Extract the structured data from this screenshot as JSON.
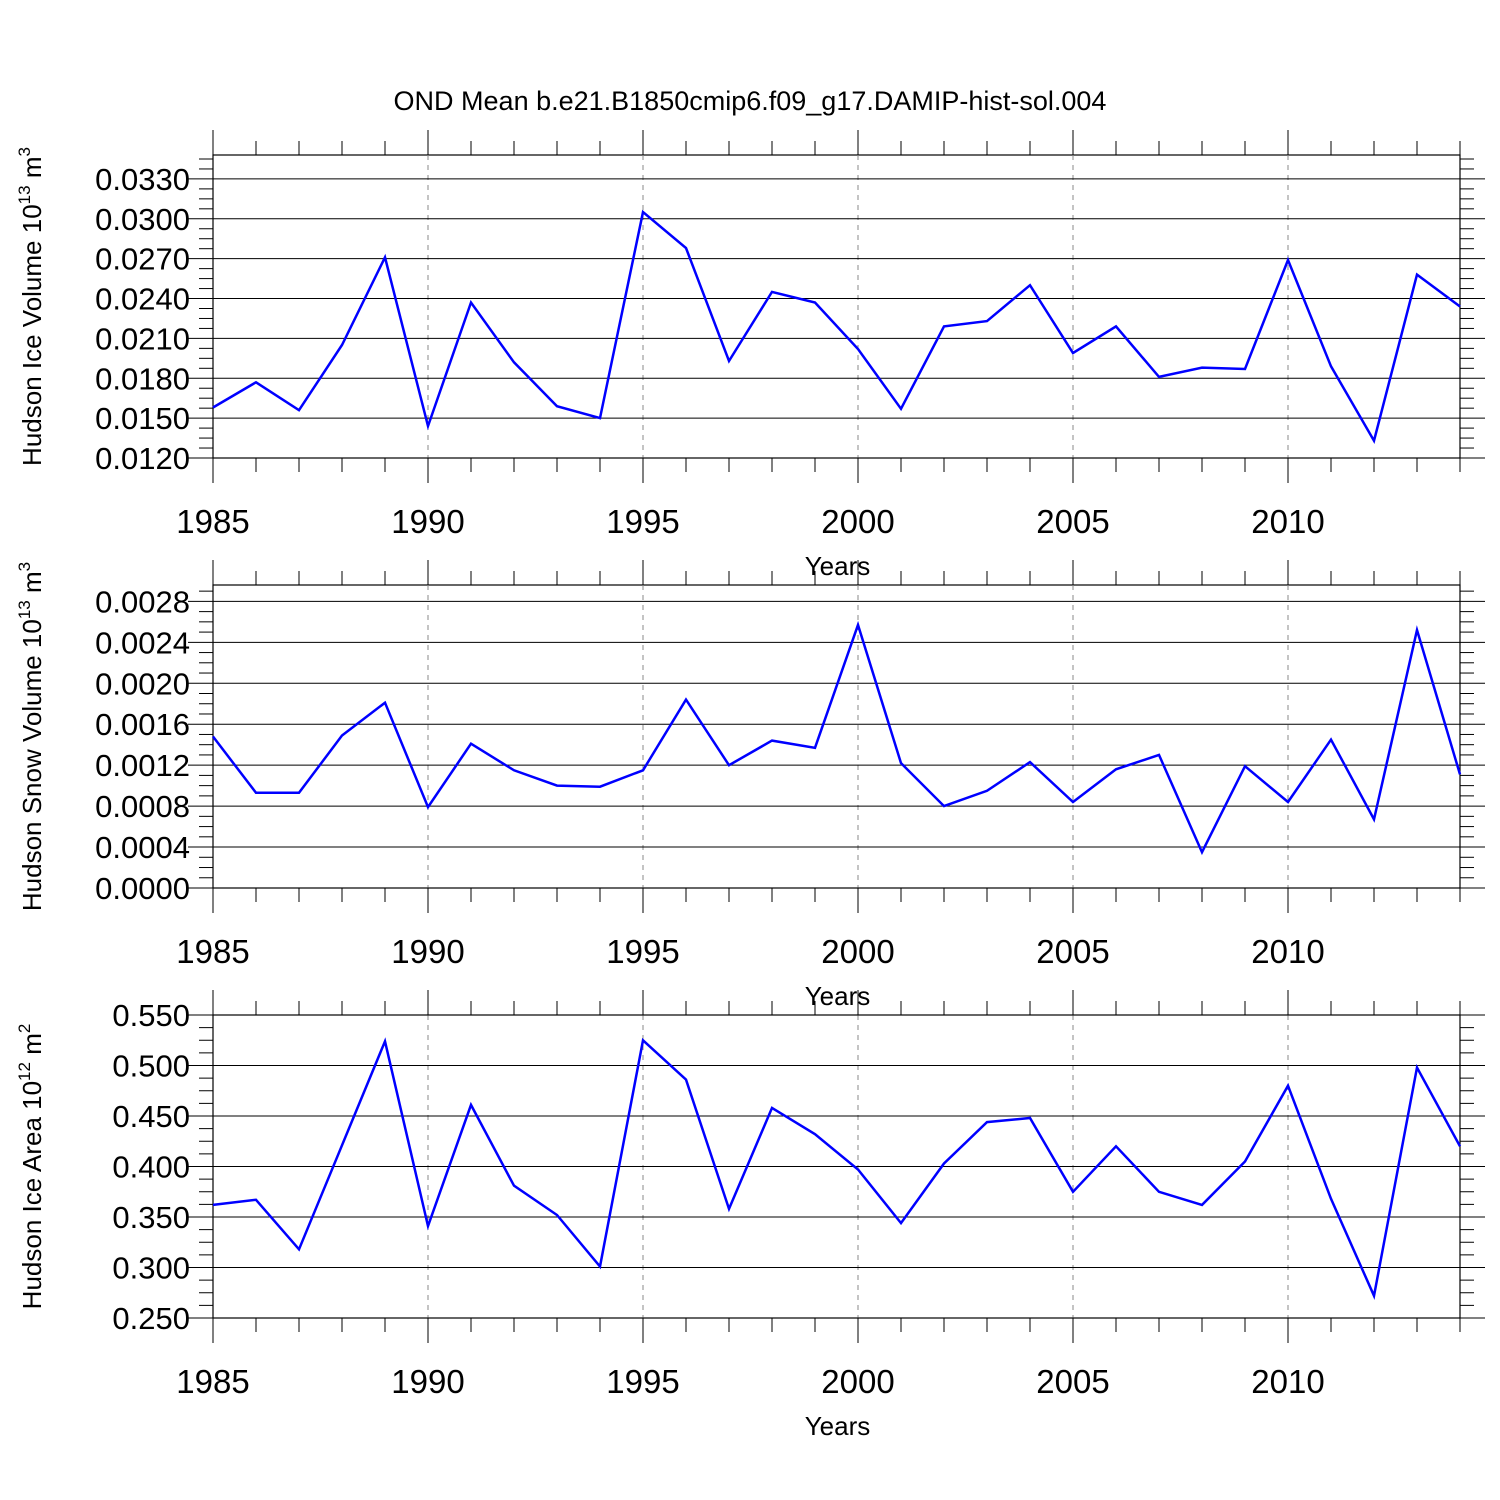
{
  "title": "OND Mean b.e21.B1850cmip6.f09_g17.DAMIP-hist-sol.004",
  "colors": {
    "line": "#0000ff",
    "axis": "#000000",
    "grid": "#888888"
  },
  "chart_data": [
    {
      "type": "line",
      "ylabel": "Hudson Ice Volume 10",
      "ylabel_sup": "13",
      "ylabel_unit": " m",
      "ylabel_unit_sup": "3",
      "xlabel": "Years",
      "xlim": [
        1985,
        2014
      ],
      "ylim": [
        0.012,
        0.0348
      ],
      "yticks": [
        "0.0330",
        "0.0300",
        "0.0270",
        "0.0240",
        "0.0210",
        "0.0180",
        "0.0150",
        "0.0120"
      ],
      "xticks": [
        "1985",
        "1990",
        "1995",
        "2000",
        "2005",
        "2010"
      ],
      "grid": "dashed vertical at major x ticks",
      "x": [
        1985,
        1986,
        1987,
        1988,
        1989,
        1990,
        1991,
        1992,
        1993,
        1994,
        1995,
        1996,
        1997,
        1998,
        1999,
        2000,
        2001,
        2002,
        2003,
        2004,
        2005,
        2006,
        2007,
        2008,
        2009,
        2010,
        2011,
        2012,
        2013,
        2014
      ],
      "y": [
        0.0158,
        0.0177,
        0.0156,
        0.0205,
        0.0271,
        0.0144,
        0.0237,
        0.0192,
        0.0159,
        0.015,
        0.0305,
        0.0278,
        0.0193,
        0.0245,
        0.0237,
        0.0202,
        0.0157,
        0.0219,
        0.0223,
        0.025,
        0.0199,
        0.0219,
        0.0181,
        0.0188,
        0.0187,
        0.0269,
        0.0189,
        0.0133,
        0.0258,
        0.0234
      ]
    },
    {
      "type": "line",
      "ylabel": "Hudson Snow Volume 10",
      "ylabel_sup": "13",
      "ylabel_unit": " m",
      "ylabel_unit_sup": "3",
      "xlabel": "Years",
      "xlim": [
        1985,
        2014
      ],
      "ylim": [
        0.0,
        0.00296
      ],
      "yticks": [
        "0.0028",
        "0.0024",
        "0.0020",
        "0.0016",
        "0.0012",
        "0.0008",
        "0.0004",
        "0.0000"
      ],
      "xticks": [
        "1985",
        "1990",
        "1995",
        "2000",
        "2005",
        "2010"
      ],
      "grid": "dashed vertical at major x ticks",
      "x": [
        1985,
        1986,
        1987,
        1988,
        1989,
        1990,
        1991,
        1992,
        1993,
        1994,
        1995,
        1996,
        1997,
        1998,
        1999,
        2000,
        2001,
        2002,
        2003,
        2004,
        2005,
        2006,
        2007,
        2008,
        2009,
        2010,
        2011,
        2012,
        2013,
        2014
      ],
      "y": [
        0.00148,
        0.00093,
        0.00093,
        0.00149,
        0.00181,
        0.00079,
        0.00141,
        0.00115,
        0.001,
        0.00099,
        0.00115,
        0.00184,
        0.0012,
        0.00144,
        0.00137,
        0.00257,
        0.00122,
        0.0008,
        0.00095,
        0.00123,
        0.00084,
        0.00116,
        0.0013,
        0.00035,
        0.00119,
        0.00084,
        0.00145,
        0.00067,
        0.00252,
        0.00111
      ]
    },
    {
      "type": "line",
      "ylabel": "Hudson Ice Area 10",
      "ylabel_sup": "12",
      "ylabel_unit": " m",
      "ylabel_unit_sup": "2",
      "xlabel": "Years",
      "xlim": [
        1985,
        2014
      ],
      "ylim": [
        0.25,
        0.55
      ],
      "yticks": [
        "0.550",
        "0.500",
        "0.450",
        "0.400",
        "0.350",
        "0.300",
        "0.250"
      ],
      "xticks": [
        "1985",
        "1990",
        "1995",
        "2000",
        "2005",
        "2010"
      ],
      "grid": "dashed vertical at major x ticks",
      "x": [
        1985,
        1986,
        1987,
        1988,
        1989,
        1990,
        1991,
        1992,
        1993,
        1994,
        1995,
        1996,
        1997,
        1998,
        1999,
        2000,
        2001,
        2002,
        2003,
        2004,
        2005,
        2006,
        2007,
        2008,
        2009,
        2010,
        2011,
        2012,
        2013,
        2014
      ],
      "y": [
        0.362,
        0.367,
        0.318,
        0.421,
        0.524,
        0.341,
        0.461,
        0.381,
        0.352,
        0.301,
        0.525,
        0.486,
        0.358,
        0.458,
        0.432,
        0.397,
        0.344,
        0.403,
        0.444,
        0.448,
        0.375,
        0.42,
        0.375,
        0.362,
        0.405,
        0.48,
        0.368,
        0.272,
        0.498,
        0.42
      ]
    }
  ]
}
